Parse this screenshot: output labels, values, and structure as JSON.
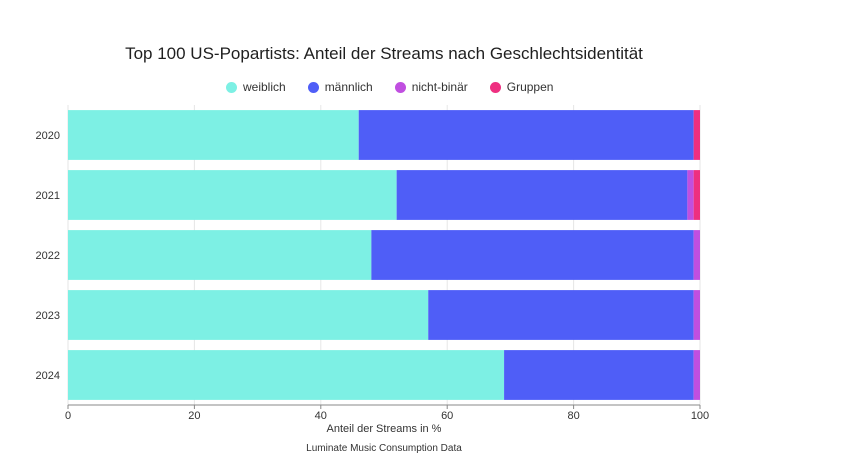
{
  "chart_data": {
    "type": "bar",
    "orientation": "horizontal",
    "stacked": true,
    "title": "Top 100 US-Popartists: Anteil der Streams nach Geschlechtsidentität",
    "xlabel": "Anteil der Streams in %",
    "ylabel": "",
    "xlim": [
      0,
      100
    ],
    "xticks": [
      "0",
      "20",
      "40",
      "60",
      "80",
      "100"
    ],
    "categories": [
      "2020",
      "2021",
      "2022",
      "2023",
      "2024"
    ],
    "series": [
      {
        "name": "weiblich",
        "color": "#7df0e4",
        "values": [
          46,
          52,
          48,
          57,
          69
        ]
      },
      {
        "name": "männlich",
        "color": "#4f5ef7",
        "values": [
          53,
          46,
          51,
          42,
          30
        ]
      },
      {
        "name": "nicht-binär",
        "color": "#c04fe0",
        "values": [
          0,
          1,
          1,
          1,
          1
        ]
      },
      {
        "name": "Gruppen",
        "color": "#ee2f80",
        "values": [
          1,
          1,
          0,
          0,
          0
        ]
      }
    ],
    "legend_position": "top",
    "grid": true,
    "source": "Luminate Music Consumption Data"
  }
}
